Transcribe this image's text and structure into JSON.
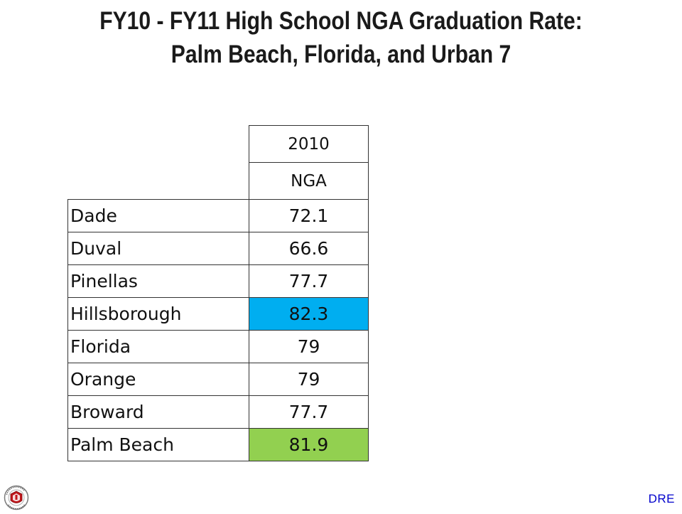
{
  "title": {
    "line1": "FY10 - FY11 High School NGA Graduation Rate:",
    "line2": "Palm Beach, Florida, and Urban 7"
  },
  "table": {
    "header_year": "2010",
    "header_metric": "NGA",
    "rows": [
      {
        "name": "Dade",
        "value": "72.1"
      },
      {
        "name": "Duval",
        "value": "66.6"
      },
      {
        "name": "Pinellas",
        "value": "77.7"
      },
      {
        "name": "Hillsborough",
        "value": "82.3"
      },
      {
        "name": "Florida",
        "value": "79"
      },
      {
        "name": "Orange",
        "value": "79"
      },
      {
        "name": "Broward",
        "value": "77.7"
      },
      {
        "name": "Palm Beach",
        "value": "81.9"
      }
    ],
    "highlight_colors": {
      "hillsborough": "#00aef0",
      "palm_beach": "#92d050"
    }
  },
  "footer": {
    "logo_icon": "school-district-seal-icon",
    "logo_text": "THE SCHOOL DISTRICT OF PALM BEACH COUNTY",
    "credit": "DRE"
  }
}
